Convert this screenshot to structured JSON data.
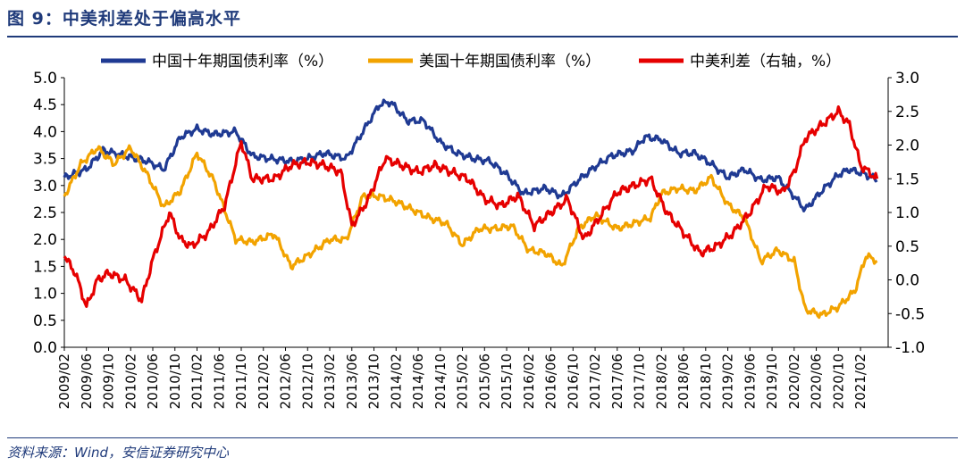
{
  "figure": {
    "title": "图 9：中美利差处于偏高水平",
    "source": "资料来源：Wind，安信证券研究中心"
  },
  "chart_data": {
    "type": "line",
    "x_ticks": [
      "2009/02",
      "2009/06",
      "2009/10",
      "2010/02",
      "2010/06",
      "2010/10",
      "2011/02",
      "2011/06",
      "2011/10",
      "2012/02",
      "2012/06",
      "2012/10",
      "2013/02",
      "2013/06",
      "2013/10",
      "2014/02",
      "2014/06",
      "2014/10",
      "2015/02",
      "2015/06",
      "2015/10",
      "2016/02",
      "2016/06",
      "2016/10",
      "2017/02",
      "2017/06",
      "2017/10",
      "2018/02",
      "2018/06",
      "2018/10",
      "2019/02",
      "2019/06",
      "2019/10",
      "2020/02",
      "2020/06",
      "2020/10",
      "2021/02"
    ],
    "left_axis": {
      "ylim": [
        0.0,
        5.0
      ],
      "ticks": [
        "0.0",
        "0.5",
        "1.0",
        "1.5",
        "2.0",
        "2.5",
        "3.0",
        "3.5",
        "4.0",
        "4.5",
        "5.0"
      ]
    },
    "right_axis": {
      "ylim": [
        -1.0,
        3.0
      ],
      "ticks": [
        "-1.0",
        "-0.5",
        "0.0",
        "0.5",
        "1.0",
        "1.5",
        "2.0",
        "2.5",
        "3.0"
      ]
    },
    "legend_placement": "top",
    "series": [
      {
        "name": "中国十年期国债利率（%）",
        "axis": "left",
        "color": "#1f3a93",
        "x": [
          "2009/02",
          "2009/06",
          "2009/09",
          "2010/01",
          "2010/05",
          "2010/08",
          "2010/11",
          "2011/02",
          "2011/05",
          "2011/09",
          "2011/12",
          "2012/03",
          "2012/07",
          "2012/10",
          "2013/01",
          "2013/05",
          "2013/08",
          "2013/11",
          "2014/01",
          "2014/04",
          "2014/07",
          "2014/10",
          "2015/01",
          "2015/04",
          "2015/07",
          "2015/10",
          "2016/01",
          "2016/05",
          "2016/08",
          "2016/11",
          "2017/02",
          "2017/05",
          "2017/09",
          "2017/11",
          "2018/02",
          "2018/05",
          "2018/08",
          "2018/11",
          "2019/02",
          "2019/05",
          "2019/08",
          "2019/11",
          "2020/02",
          "2020/04",
          "2020/07",
          "2020/10",
          "2020/12",
          "2021/03",
          "2021/05"
        ],
        "values": [
          3.15,
          3.3,
          3.65,
          3.55,
          3.45,
          3.3,
          3.9,
          4.05,
          3.95,
          4.0,
          3.55,
          3.5,
          3.45,
          3.5,
          3.6,
          3.5,
          4.0,
          4.5,
          4.55,
          4.2,
          4.2,
          3.8,
          3.6,
          3.5,
          3.45,
          3.2,
          2.85,
          2.95,
          2.8,
          3.1,
          3.35,
          3.55,
          3.65,
          3.9,
          3.85,
          3.6,
          3.6,
          3.4,
          3.15,
          3.3,
          3.1,
          3.15,
          2.8,
          2.55,
          2.9,
          3.2,
          3.3,
          3.2,
          3.1
        ]
      },
      {
        "name": "美国十年期国债利率（%）",
        "axis": "left",
        "color": "#f2a300",
        "x": [
          "2009/02",
          "2009/05",
          "2009/08",
          "2009/11",
          "2010/02",
          "2010/05",
          "2010/08",
          "2010/11",
          "2011/02",
          "2011/05",
          "2011/09",
          "2011/12",
          "2012/04",
          "2012/07",
          "2012/10",
          "2013/02",
          "2013/05",
          "2013/08",
          "2013/11",
          "2014/02",
          "2014/05",
          "2014/08",
          "2014/11",
          "2015/02",
          "2015/05",
          "2015/08",
          "2015/11",
          "2016/02",
          "2016/05",
          "2016/08",
          "2016/11",
          "2017/02",
          "2017/06",
          "2017/09",
          "2017/12",
          "2018/02",
          "2018/05",
          "2018/08",
          "2018/11",
          "2019/02",
          "2019/05",
          "2019/08",
          "2019/11",
          "2020/02",
          "2020/04",
          "2020/07",
          "2020/10",
          "2021/01",
          "2021/03",
          "2021/05"
        ],
        "values": [
          2.8,
          3.4,
          3.7,
          3.4,
          3.7,
          3.2,
          2.6,
          2.9,
          3.6,
          3.1,
          2.0,
          1.95,
          2.1,
          1.5,
          1.7,
          2.0,
          2.0,
          2.8,
          2.8,
          2.7,
          2.55,
          2.4,
          2.3,
          1.9,
          2.2,
          2.2,
          2.25,
          1.8,
          1.75,
          1.5,
          2.2,
          2.45,
          2.2,
          2.3,
          2.4,
          2.85,
          2.95,
          2.9,
          3.15,
          2.65,
          2.4,
          1.6,
          1.8,
          1.6,
          0.7,
          0.6,
          0.75,
          1.05,
          1.7,
          1.6
        ]
      },
      {
        "name": "中美利差（右轴，%）",
        "axis": "right",
        "color": "#e60000",
        "x": [
          "2009/02",
          "2009/04",
          "2009/06",
          "2009/08",
          "2009/10",
          "2010/01",
          "2010/04",
          "2010/06",
          "2010/09",
          "2010/11",
          "2011/01",
          "2011/04",
          "2011/07",
          "2011/10",
          "2011/12",
          "2012/04",
          "2012/07",
          "2012/10",
          "2013/01",
          "2013/04",
          "2013/06",
          "2013/09",
          "2013/12",
          "2014/03",
          "2014/06",
          "2014/09",
          "2014/12",
          "2015/03",
          "2015/06",
          "2015/09",
          "2015/12",
          "2016/03",
          "2016/06",
          "2016/09",
          "2016/12",
          "2017/03",
          "2017/06",
          "2017/09",
          "2017/12",
          "2018/03",
          "2018/06",
          "2018/09",
          "2018/12",
          "2019/03",
          "2019/06",
          "2019/09",
          "2019/12",
          "2020/02",
          "2020/04",
          "2020/07",
          "2020/10",
          "2020/12",
          "2021/02",
          "2021/05"
        ],
        "values": [
          0.35,
          0.1,
          -0.4,
          0.0,
          0.1,
          0.0,
          -0.3,
          0.3,
          1.0,
          0.6,
          0.5,
          0.7,
          1.1,
          2.05,
          1.5,
          1.5,
          1.7,
          1.75,
          1.7,
          1.6,
          0.8,
          1.2,
          1.8,
          1.7,
          1.6,
          1.7,
          1.6,
          1.5,
          1.2,
          1.1,
          1.25,
          0.8,
          1.0,
          1.2,
          0.6,
          0.95,
          1.3,
          1.4,
          1.5,
          1.0,
          0.7,
          0.4,
          0.5,
          0.7,
          1.0,
          1.4,
          1.3,
          1.6,
          2.1,
          2.3,
          2.5,
          2.3,
          1.7,
          1.5
        ]
      }
    ]
  }
}
